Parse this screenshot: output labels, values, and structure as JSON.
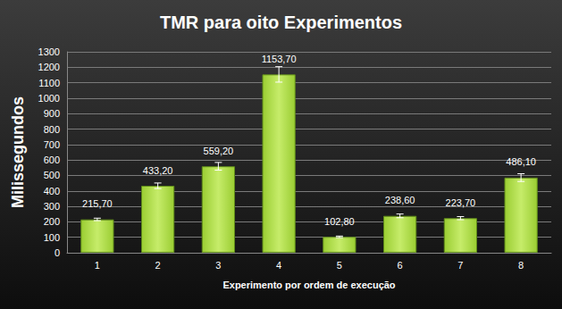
{
  "chart_data": {
    "type": "bar",
    "title": "TMR para oito Experimentos",
    "x_label": "Experimento por ordem de execução",
    "y_label": "Milissegundos",
    "categories": [
      "1",
      "2",
      "3",
      "4",
      "5",
      "6",
      "7",
      "8"
    ],
    "values": [
      215.7,
      433.2,
      559.2,
      1153.7,
      102.8,
      238.6,
      223.7,
      486.1
    ],
    "value_labels": [
      "215,70",
      "433,20",
      "559,20",
      "1153,70",
      "102,80",
      "238,60",
      "223,70",
      "486,10"
    ],
    "errors": [
      8,
      18,
      25,
      50,
      5,
      12,
      10,
      25
    ],
    "color": "#9acd32",
    "ylim": [
      0,
      1300
    ],
    "yticks": [
      0,
      100,
      200,
      300,
      400,
      500,
      600,
      700,
      800,
      900,
      1000,
      1100,
      1200,
      1300
    ],
    "grid": true,
    "data_labels": true
  }
}
